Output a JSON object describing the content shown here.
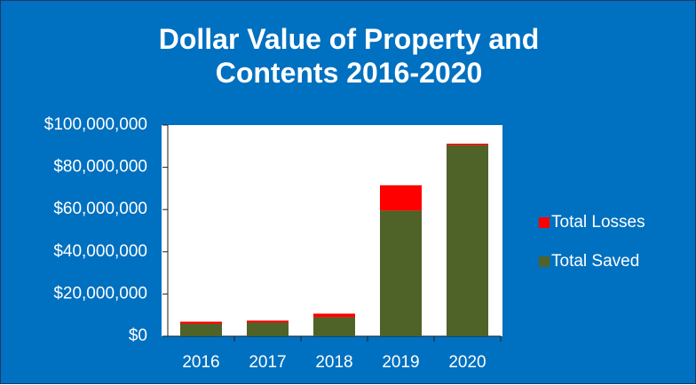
{
  "chart_data": {
    "type": "stacked_bar",
    "title": "Dollar Value of Property and Contents 2016-2020",
    "categories": [
      "2016",
      "2017",
      "2018",
      "2019",
      "2020"
    ],
    "series": [
      {
        "name": "Total Saved",
        "color": "#4f6228",
        "values": [
          5900000,
          6500000,
          9000000,
          59500000,
          90500000
        ]
      },
      {
        "name": "Total Losses",
        "color": "#ff0000",
        "values": [
          1000000,
          900000,
          1700000,
          12000000,
          700000
        ]
      }
    ],
    "ylim": [
      0,
      100000000
    ],
    "yticks": [
      {
        "value": 0,
        "label": "$0"
      },
      {
        "value": 20000000,
        "label": "$20,000,000"
      },
      {
        "value": 40000000,
        "label": "$40,000,000"
      },
      {
        "value": 60000000,
        "label": "$60,000,000"
      },
      {
        "value": 80000000,
        "label": "$80,000,000"
      },
      {
        "value": 100000000,
        "label": "$100,000,000"
      }
    ],
    "legend": "right",
    "grid": false
  }
}
